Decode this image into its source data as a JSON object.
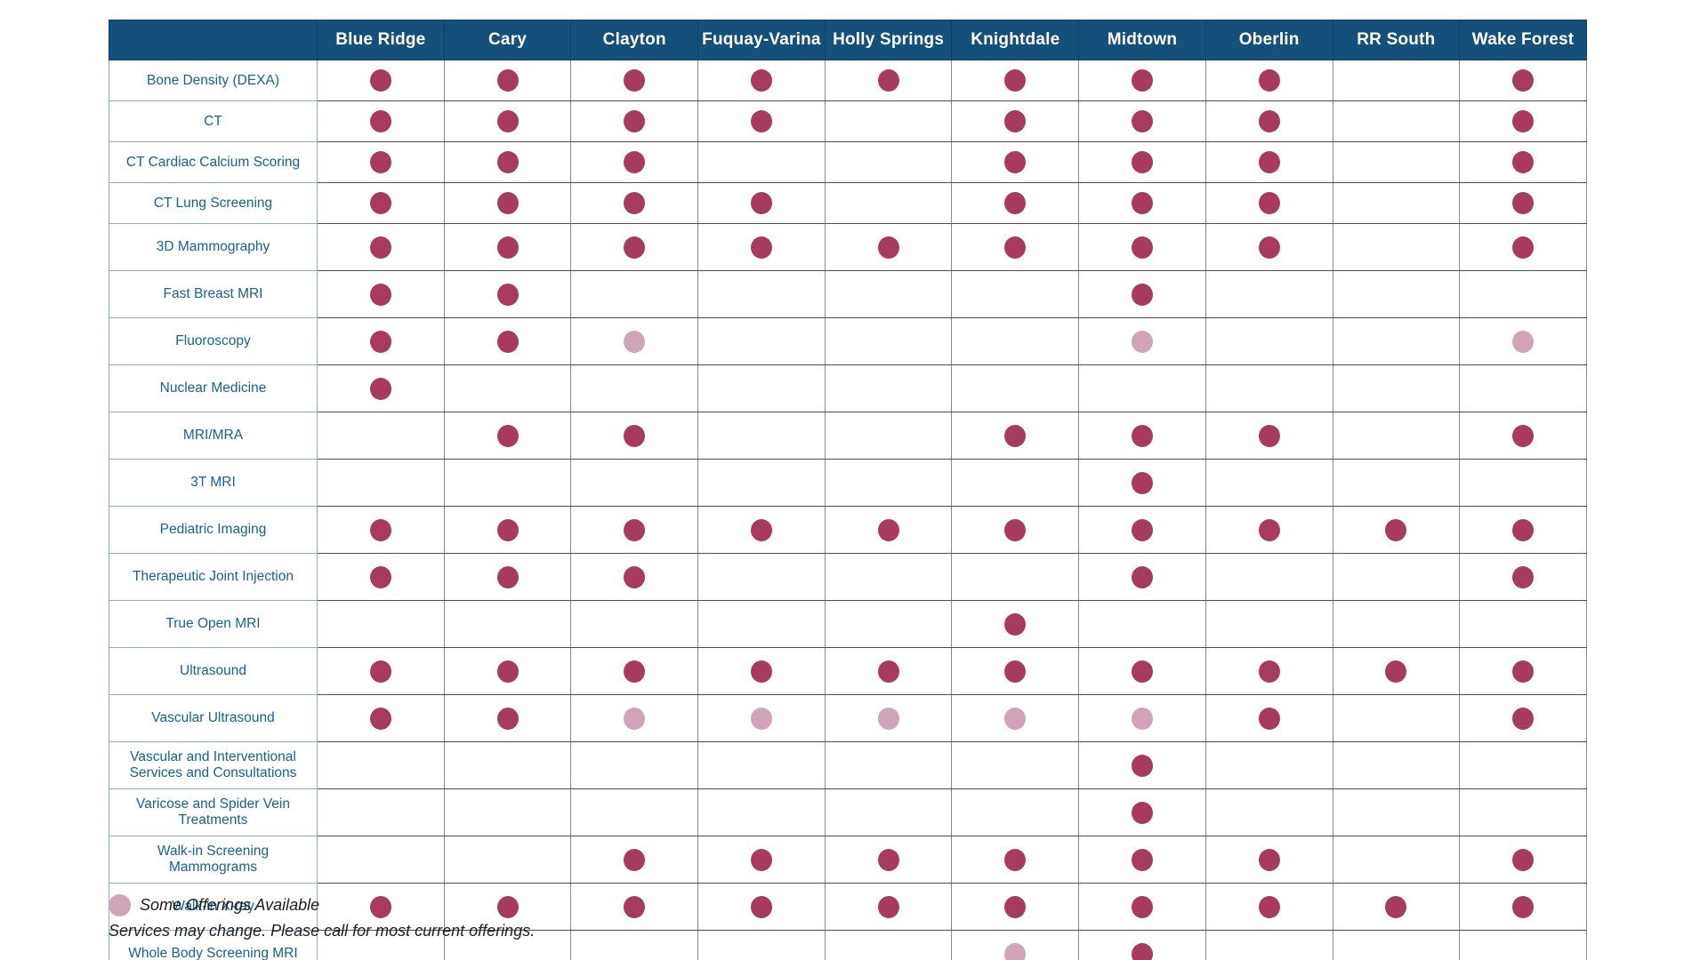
{
  "table": {
    "columns": [
      "Blue Ridge",
      "Cary",
      "Clayton",
      "Fuquay-Varina",
      "Holly Springs",
      "Knightdale",
      "Midtown",
      "Oberlin",
      "RR South",
      "Wake Forest"
    ],
    "rows": [
      {
        "label": "Bone Density (DEXA)",
        "cells": [
          "full",
          "full",
          "full",
          "full",
          "full",
          "full",
          "full",
          "full",
          "",
          "full"
        ]
      },
      {
        "label": "CT",
        "cells": [
          "full",
          "full",
          "full",
          "full",
          "",
          "full",
          "full",
          "full",
          "",
          "full"
        ]
      },
      {
        "label": "CT Cardiac Calcium Scoring",
        "cells": [
          "full",
          "full",
          "full",
          "",
          "",
          "full",
          "full",
          "full",
          "",
          "full"
        ]
      },
      {
        "label": "CT Lung Screening",
        "cells": [
          "full",
          "full",
          "full",
          "full",
          "",
          "full",
          "full",
          "full",
          "",
          "full"
        ]
      },
      {
        "label": "3D Mammography",
        "cells": [
          "full",
          "full",
          "full",
          "full",
          "full",
          "full",
          "full",
          "full",
          "",
          "full"
        ]
      },
      {
        "label": "Fast Breast MRI",
        "cells": [
          "full",
          "full",
          "",
          "",
          "",
          "",
          "full",
          "",
          "",
          ""
        ]
      },
      {
        "label": "Fluoroscopy",
        "cells": [
          "full",
          "full",
          "some",
          "",
          "",
          "",
          "some",
          "",
          "",
          "some"
        ]
      },
      {
        "label": "Nuclear Medicine",
        "cells": [
          "full",
          "",
          "",
          "",
          "",
          "",
          "",
          "",
          "",
          ""
        ]
      },
      {
        "label": "MRI/MRA",
        "cells": [
          "",
          "full",
          "full",
          "",
          "",
          "full",
          "full",
          "full",
          "",
          "full"
        ]
      },
      {
        "label": "3T MRI",
        "cells": [
          "",
          "",
          "",
          "",
          "",
          "",
          "full",
          "",
          "",
          ""
        ]
      },
      {
        "label": "Pediatric Imaging",
        "cells": [
          "full",
          "full",
          "full",
          "full",
          "full",
          "full",
          "full",
          "full",
          "full",
          "full"
        ]
      },
      {
        "label": "Therapeutic Joint Injection",
        "cells": [
          "full",
          "full",
          "full",
          "",
          "",
          "",
          "full",
          "",
          "",
          "full"
        ]
      },
      {
        "label": "True Open MRI",
        "cells": [
          "",
          "",
          "",
          "",
          "",
          "full",
          "",
          "",
          "",
          ""
        ]
      },
      {
        "label": "Ultrasound",
        "cells": [
          "full",
          "full",
          "full",
          "full",
          "full",
          "full",
          "full",
          "full",
          "full",
          "full"
        ]
      },
      {
        "label": "Vascular Ultrasound",
        "cells": [
          "full",
          "full",
          "some",
          "some",
          "some",
          "some",
          "some",
          "full",
          "",
          "full"
        ]
      },
      {
        "label": "Vascular and Interventional Services and Consultations",
        "cells": [
          "",
          "",
          "",
          "",
          "",
          "",
          "full",
          "",
          "",
          ""
        ]
      },
      {
        "label": "Varicose and Spider Vein Treatments",
        "cells": [
          "",
          "",
          "",
          "",
          "",
          "",
          "full",
          "",
          "",
          ""
        ]
      },
      {
        "label": "Walk-in Screening Mammograms",
        "cells": [
          "",
          "",
          "full",
          "full",
          "full",
          "full",
          "full",
          "full",
          "",
          "full"
        ]
      },
      {
        "label": "Walk-in X-ray",
        "cells": [
          "full",
          "full",
          "full",
          "full",
          "full",
          "full",
          "full",
          "full",
          "full",
          "full"
        ]
      },
      {
        "label": "Whole Body Screening MRI",
        "cells": [
          "",
          "",
          "",
          "",
          "",
          "some",
          "full",
          "",
          "",
          ""
        ]
      }
    ]
  },
  "legend": {
    "some_label": "Some Offerings Available"
  },
  "footnote": "Services may change. Please call for most current offerings.",
  "colors": {
    "header_bg": "#14507C",
    "header_text": "#FFFFFF",
    "label_text": "#19618F",
    "dot_full": "#A73A5E",
    "dot_some": "#D0A3B9"
  }
}
